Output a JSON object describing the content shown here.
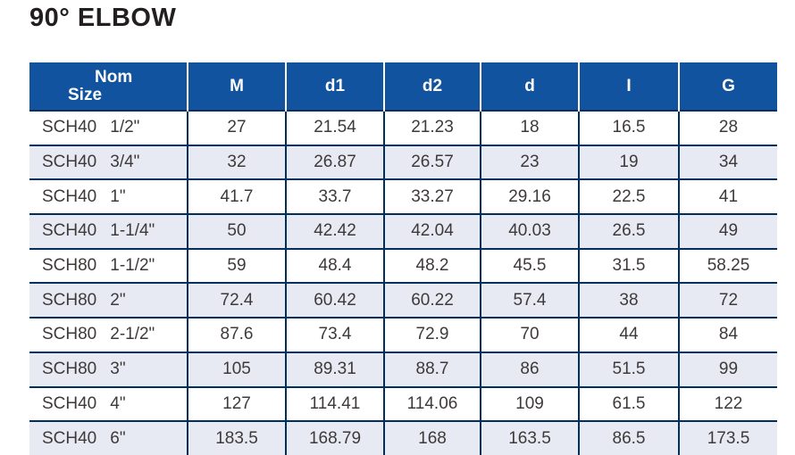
{
  "page_title": "90° ELBOW",
  "table": {
    "nom_header_line1": "Nom",
    "nom_header_line2": "Size",
    "columns": [
      "M",
      "d1",
      "d2",
      "d",
      "I",
      "G"
    ],
    "rows": [
      {
        "sch": "SCH40",
        "size": "1/2\"",
        "values": [
          "27",
          "21.54",
          "21.23",
          "18",
          "16.5",
          "28"
        ]
      },
      {
        "sch": "SCH40",
        "size": "3/4\"",
        "values": [
          "32",
          "26.87",
          "26.57",
          "23",
          "19",
          "34"
        ]
      },
      {
        "sch": "SCH40",
        "size": "1\"",
        "values": [
          "41.7",
          "33.7",
          "33.27",
          "29.16",
          "22.5",
          "41"
        ]
      },
      {
        "sch": "SCH40",
        "size": "1-1/4\"",
        "values": [
          "50",
          "42.42",
          "42.04",
          "40.03",
          "26.5",
          "49"
        ]
      },
      {
        "sch": "SCH80",
        "size": "1-1/2\"",
        "values": [
          "59",
          "48.4",
          "48.2",
          "45.5",
          "31.5",
          "58.25"
        ]
      },
      {
        "sch": "SCH80",
        "size": "2\"",
        "values": [
          "72.4",
          "60.42",
          "60.22",
          "57.4",
          "38",
          "72"
        ]
      },
      {
        "sch": "SCH80",
        "size": "2-1/2\"",
        "values": [
          "87.6",
          "73.4",
          "72.9",
          "70",
          "44",
          "84"
        ]
      },
      {
        "sch": "SCH80",
        "size": "3\"",
        "values": [
          "105",
          "89.31",
          "88.7",
          "86",
          "51.5",
          "99"
        ]
      },
      {
        "sch": "SCH40",
        "size": "4\"",
        "values": [
          "127",
          "114.41",
          "114.06",
          "109",
          "61.5",
          "122"
        ]
      },
      {
        "sch": "SCH40",
        "size": "6\"",
        "values": [
          "183.5",
          "168.79",
          "168",
          "163.5",
          "86.5",
          "173.5"
        ]
      }
    ]
  },
  "colors": {
    "header_bg": "#11539e",
    "header_text": "#ffffff",
    "border_navy": "#002f5e",
    "alt_row_bg": "#e7eaf3",
    "cell_text": "#3e3a39",
    "title_text": "#231f20"
  },
  "chart_data": {
    "type": "table",
    "title": "90° ELBOW",
    "columns": [
      "Nom Size",
      "M",
      "d1",
      "d2",
      "d",
      "I",
      "G"
    ],
    "rows": [
      [
        "SCH40 1/2\"",
        27,
        21.54,
        21.23,
        18,
        16.5,
        28
      ],
      [
        "SCH40 3/4\"",
        32,
        26.87,
        26.57,
        23,
        19,
        34
      ],
      [
        "SCH40 1\"",
        41.7,
        33.7,
        33.27,
        29.16,
        22.5,
        41
      ],
      [
        "SCH40 1-1/4\"",
        50,
        42.42,
        42.04,
        40.03,
        26.5,
        49
      ],
      [
        "SCH80 1-1/2\"",
        59,
        48.4,
        48.2,
        45.5,
        31.5,
        58.25
      ],
      [
        "SCH80 2\"",
        72.4,
        60.42,
        60.22,
        57.4,
        38,
        72
      ],
      [
        "SCH80 2-1/2\"",
        87.6,
        73.4,
        72.9,
        70,
        44,
        84
      ],
      [
        "SCH80 3\"",
        105,
        89.31,
        88.7,
        86,
        51.5,
        99
      ],
      [
        "SCH40 4\"",
        127,
        114.41,
        114.06,
        109,
        61.5,
        122
      ],
      [
        "SCH40 6\"",
        183.5,
        168.79,
        168,
        163.5,
        86.5,
        173.5
      ]
    ],
    "layout": {
      "header_style": "solid blue band, white bold labels",
      "zebra_striping": "white / light periwinkle alternating starting white",
      "gridlines": "dark navy horizontal and vertical rules, no outer left/right border"
    }
  }
}
